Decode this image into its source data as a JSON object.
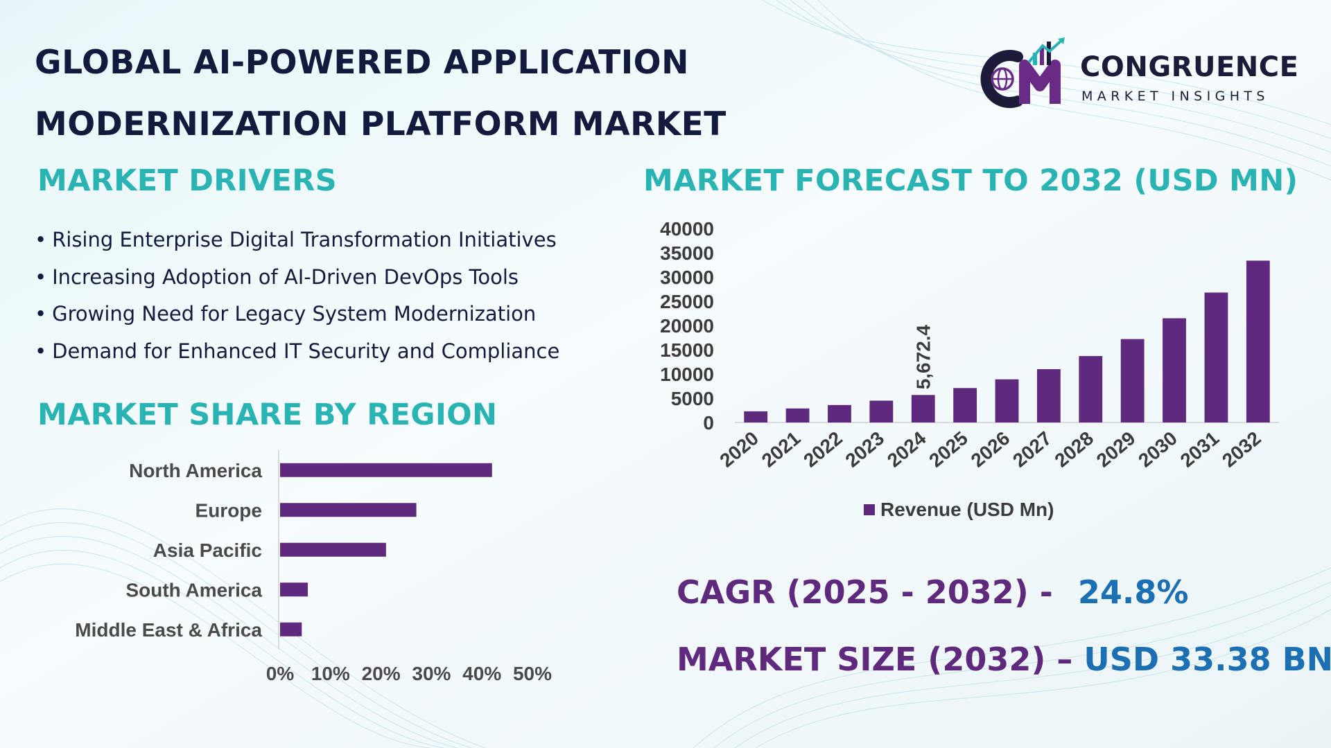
{
  "title": {
    "line1": "GLOBAL AI-POWERED APPLICATION",
    "line2": "MODERNIZATION PLATFORM MARKET"
  },
  "logo": {
    "monogram": "CM",
    "name": "CONGRUENCE",
    "tagline": "MARKET INSIGHTS"
  },
  "drivers": {
    "heading": "MARKET DRIVERS",
    "items": [
      "Rising Enterprise Digital Transformation Initiatives",
      "Increasing Adoption of AI-Driven DevOps Tools",
      "Growing Need for Legacy System Modernization",
      "Demand for Enhanced IT Security and Compliance"
    ]
  },
  "forecast": {
    "heading": "MARKET FORECAST TO 2032 (USD MN)"
  },
  "region": {
    "heading": "MARKET SHARE BY REGION"
  },
  "stats": {
    "cagr_label": "CAGR (2025 - 2032) -",
    "cagr_value": "24.8%",
    "size_label": "MARKET SIZE (2032) –",
    "size_value": "USD 33.38 BN"
  },
  "colors": {
    "bar": "#5f2a7e",
    "heading_teal": "#2ab3b3",
    "title_navy": "#141a3e",
    "stat_purple": "#5f2a7e",
    "stat_blue": "#1b6fb2"
  },
  "chart_data": [
    {
      "type": "bar",
      "title": "MARKET FORECAST TO 2032 (USD MN)",
      "categories": [
        "2020",
        "2021",
        "2022",
        "2023",
        "2024",
        "2025",
        "2026",
        "2027",
        "2028",
        "2029",
        "2030",
        "2031",
        "2032"
      ],
      "series": [
        {
          "name": "Revenue (USD Mn)",
          "values": [
            2300,
            2900,
            3600,
            4500,
            5672.4,
            7100,
            8900,
            11000,
            13700,
            17200,
            21500,
            26800,
            33380
          ]
        }
      ],
      "data_labels": [
        {
          "index": 4,
          "text": "5,672.4"
        }
      ],
      "ylim": [
        0,
        40000
      ],
      "yticks": [
        0,
        5000,
        10000,
        15000,
        20000,
        25000,
        30000,
        35000,
        40000
      ],
      "xlabel": "",
      "ylabel": "",
      "legend": "bottom"
    },
    {
      "type": "bar",
      "orientation": "horizontal",
      "title": "MARKET SHARE BY REGION",
      "categories": [
        "North America",
        "Europe",
        "Asia Pacific",
        "South America",
        "Middle East & Africa"
      ],
      "values": [
        42,
        27,
        21,
        5.5,
        4.3
      ],
      "xlim": [
        0,
        50
      ],
      "xticks": [
        "0%",
        "10%",
        "20%",
        "30%",
        "40%",
        "50%"
      ]
    }
  ]
}
